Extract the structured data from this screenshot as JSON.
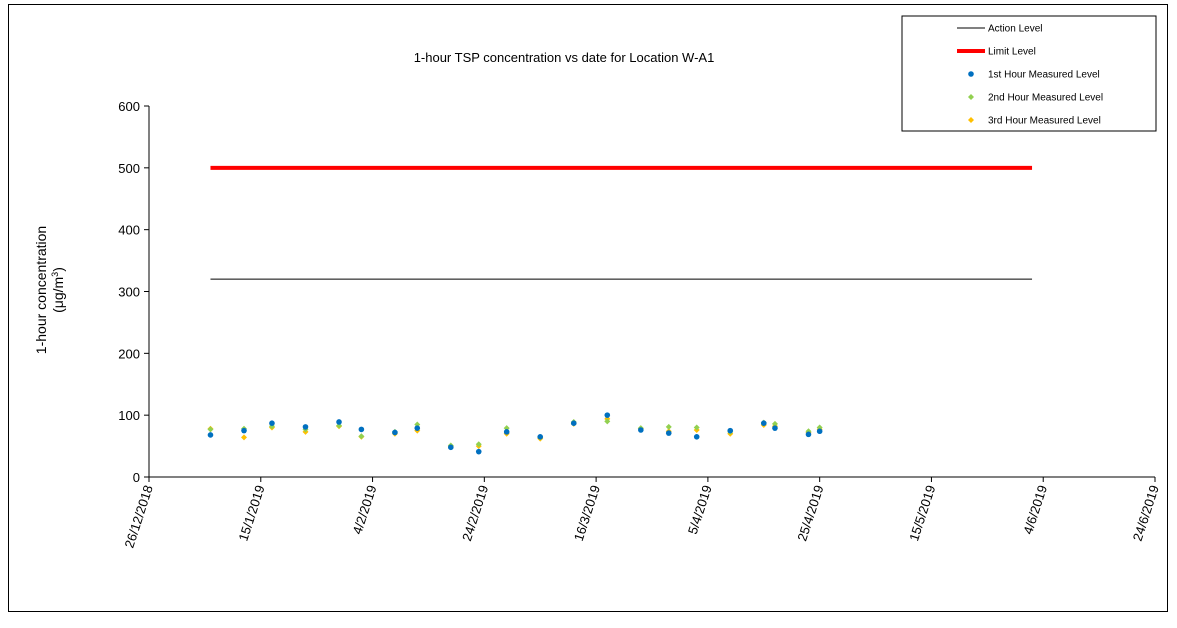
{
  "chart_data": {
    "type": "scatter",
    "title": "1-hour TSP concentration vs date for Location W-A1",
    "ylabel_line1": "1-hour concentration",
    "ylabel_line2_prefix": "(μg/m",
    "ylabel_line2_sup": "3",
    "ylabel_line2_suffix": ")",
    "xlabel": "",
    "ylim": [
      0,
      600
    ],
    "yticks": [
      "0",
      "100",
      "200",
      "300",
      "400",
      "500",
      "600"
    ],
    "xlim": [
      "2018-12-26",
      "2019-06-24"
    ],
    "xticks": [
      "26/12/2018",
      "15/1/2019",
      "4/2/2019",
      "24/2/2019",
      "16/3/2019",
      "5/4/2019",
      "25/4/2019",
      "15/5/2019",
      "4/6/2019",
      "24/6/2019"
    ],
    "legend_position": "top-right",
    "grid": false,
    "reference_lines": [
      {
        "name": "Action Level",
        "value": 320,
        "x_start": "2019-01-06",
        "x_end": "2019-06-02",
        "color": "#000000"
      },
      {
        "name": "Limit Level",
        "value": 500,
        "x_start": "2019-01-06",
        "x_end": "2019-06-02",
        "color": "#ff0000"
      }
    ],
    "series": [
      {
        "name": "1st Hour Measured Level",
        "color": "#0070c0",
        "marker": "circle",
        "points": [
          [
            "2019-01-06",
            68
          ],
          [
            "2019-01-12",
            75
          ],
          [
            "2019-01-17",
            87
          ],
          [
            "2019-01-23",
            81
          ],
          [
            "2019-01-29",
            89
          ],
          [
            "2019-02-02",
            77
          ],
          [
            "2019-02-08",
            72
          ],
          [
            "2019-02-12",
            79
          ],
          [
            "2019-02-18",
            48
          ],
          [
            "2019-02-23",
            41
          ],
          [
            "2019-02-28",
            73
          ],
          [
            "2019-03-06",
            65
          ],
          [
            "2019-03-12",
            87
          ],
          [
            "2019-03-18",
            100
          ],
          [
            "2019-03-24",
            76
          ],
          [
            "2019-03-29",
            71
          ],
          [
            "2019-04-03",
            65
          ],
          [
            "2019-04-09",
            75
          ],
          [
            "2019-04-15",
            87
          ],
          [
            "2019-04-17",
            79
          ],
          [
            "2019-04-23",
            69
          ],
          [
            "2019-04-25",
            74
          ]
        ]
      },
      {
        "name": "2nd Hour Measured Level",
        "color": "#92d050",
        "marker": "diamond",
        "points": [
          [
            "2019-01-06",
            77
          ],
          [
            "2019-01-12",
            78
          ],
          [
            "2019-01-17",
            82
          ],
          [
            "2019-01-23",
            77
          ],
          [
            "2019-01-29",
            83
          ],
          [
            "2019-02-02",
            66
          ],
          [
            "2019-02-08",
            73
          ],
          [
            "2019-02-12",
            85
          ],
          [
            "2019-02-18",
            51
          ],
          [
            "2019-02-23",
            53
          ],
          [
            "2019-02-28",
            79
          ],
          [
            "2019-03-06",
            64
          ],
          [
            "2019-03-12",
            89
          ],
          [
            "2019-03-18",
            90
          ],
          [
            "2019-03-24",
            79
          ],
          [
            "2019-03-29",
            81
          ],
          [
            "2019-04-03",
            80
          ],
          [
            "2019-04-09",
            73
          ],
          [
            "2019-04-15",
            88
          ],
          [
            "2019-04-17",
            86
          ],
          [
            "2019-04-23",
            74
          ],
          [
            "2019-04-25",
            80
          ]
        ]
      },
      {
        "name": "3rd Hour Measured Level",
        "color": "#ffc000",
        "marker": "diamond",
        "points": [
          [
            "2019-01-06",
            78
          ],
          [
            "2019-01-12",
            64
          ],
          [
            "2019-01-17",
            80
          ],
          [
            "2019-01-23",
            73
          ],
          [
            "2019-01-29",
            82
          ],
          [
            "2019-02-02",
            65
          ],
          [
            "2019-02-08",
            70
          ],
          [
            "2019-02-12",
            75
          ],
          [
            "2019-02-18",
            50
          ],
          [
            "2019-02-23",
            50
          ],
          [
            "2019-02-28",
            70
          ],
          [
            "2019-03-06",
            62
          ],
          [
            "2019-03-12",
            86
          ],
          [
            "2019-03-18",
            94
          ],
          [
            "2019-03-24",
            78
          ],
          [
            "2019-03-29",
            74
          ],
          [
            "2019-04-03",
            76
          ],
          [
            "2019-04-09",
            70
          ],
          [
            "2019-04-15",
            84
          ],
          [
            "2019-04-17",
            82
          ],
          [
            "2019-04-23",
            72
          ],
          [
            "2019-04-25",
            77
          ]
        ]
      }
    ]
  }
}
